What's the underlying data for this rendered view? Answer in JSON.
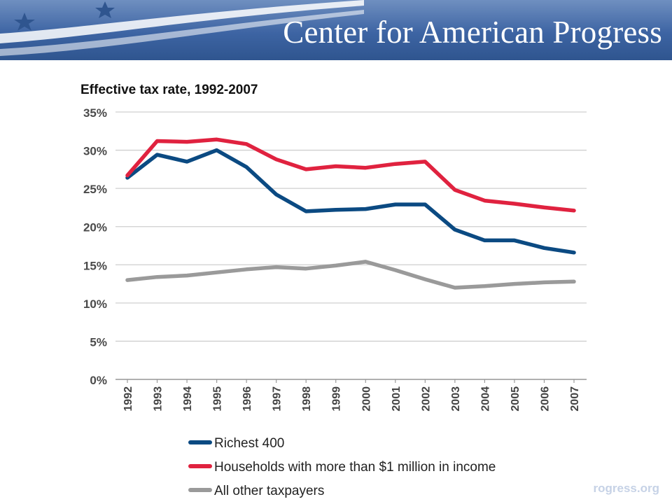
{
  "header": {
    "brand": "Center for American Progress"
  },
  "footer": {
    "url": "rogress.org"
  },
  "chart_data": {
    "type": "line",
    "title": "Effective tax rate, 1992-2007",
    "xlabel": "",
    "ylabel": "",
    "categories": [
      "1992",
      "1993",
      "1994",
      "1995",
      "1996",
      "1997",
      "1998",
      "1999",
      "2000",
      "2001",
      "2002",
      "2003",
      "2004",
      "2005",
      "2006",
      "2007"
    ],
    "ylim": [
      0,
      35
    ],
    "yticks": [
      0,
      5,
      10,
      15,
      20,
      25,
      30,
      35
    ],
    "ytick_labels": [
      "0%",
      "5%",
      "10%",
      "15%",
      "20%",
      "25%",
      "30%",
      "35%"
    ],
    "grid": true,
    "legend_position": "bottom",
    "series": [
      {
        "name": "Richest 400",
        "color": "#0b4a82",
        "values": [
          26.4,
          29.4,
          28.5,
          30.0,
          27.8,
          24.2,
          22.0,
          22.2,
          22.3,
          22.9,
          22.9,
          19.6,
          18.2,
          18.2,
          17.2,
          16.6
        ]
      },
      {
        "name": "Households with more than $1 million in income",
        "color": "#e0223f",
        "values": [
          26.7,
          31.2,
          31.1,
          31.4,
          30.8,
          28.8,
          27.5,
          27.9,
          27.7,
          28.2,
          28.5,
          24.8,
          23.4,
          23.0,
          22.5,
          22.1
        ]
      },
      {
        "name": "All other taxpayers",
        "color": "#9a9a9a",
        "values": [
          13.0,
          13.4,
          13.6,
          14.0,
          14.4,
          14.7,
          14.5,
          14.9,
          15.4,
          14.3,
          13.1,
          12.0,
          12.2,
          12.5,
          12.7,
          12.8
        ]
      }
    ]
  }
}
